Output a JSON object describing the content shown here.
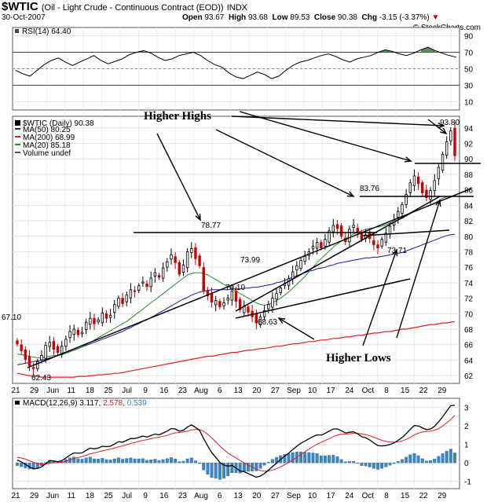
{
  "header": {
    "symbol": "$WTIC",
    "description": "(Oil - Light Crude - Continuous Contract (EOD))",
    "exchange": "INDX",
    "date": "30-Oct-2007",
    "open_label": "Open",
    "open": "93.67",
    "high_label": "High",
    "high": "93.68",
    "low_label": "Low",
    "low": "89.53",
    "close_label": "Close",
    "close": "90.38",
    "chg_label": "Chg",
    "chg": "-3.15 (-3.37%)",
    "credit": "© StockCharts.com"
  },
  "colors": {
    "candle_up": "#ffffff",
    "candle_down": "#cc0000",
    "ma50": "#1a1aa0",
    "ma200": "#e02020",
    "ma20": "#2a8a2a",
    "rsi": "#000000",
    "rsi_fill": "#3a7a3a",
    "macd": "#000000",
    "signal": "#e02020",
    "histogram": "#3b86c6"
  },
  "chart_data": [
    {
      "type": "line",
      "panel": "RSI",
      "title": "RSI(14) 64.40",
      "y_ticks": [
        "90",
        "70",
        "50",
        "30",
        "10"
      ],
      "ylim": [
        0,
        100
      ],
      "series": [
        {
          "name": "RSI(14)",
          "values": [
            48,
            44,
            41,
            48,
            55,
            60,
            63,
            58,
            54,
            58,
            62,
            66,
            60,
            56,
            59,
            62,
            67,
            70,
            72,
            69,
            64,
            60,
            62,
            66,
            68,
            70,
            66,
            60,
            55,
            52,
            45,
            40,
            38,
            42,
            46,
            43,
            38,
            41,
            48,
            54,
            58,
            60,
            63,
            66,
            68,
            65,
            61,
            58,
            62,
            64,
            66,
            70,
            73,
            71,
            68,
            66,
            69,
            73,
            76,
            72,
            69,
            66,
            64
          ]
        }
      ]
    },
    {
      "type": "candlestick",
      "panel": "price",
      "legend": [
        "$WTIC (Daily) 90.38",
        "MA(50) 80.25",
        "MA(200) 68.99",
        "MA(20) 85.18",
        "Volume undef"
      ],
      "y_ticks": [
        "94",
        "92",
        "90",
        "88",
        "86",
        "84",
        "82",
        "80",
        "78",
        "76",
        "74",
        "72",
        "70",
        "68",
        "66",
        "64",
        "62"
      ],
      "ylim": [
        61,
        95.5
      ],
      "x_labels": [
        "21",
        "29",
        "Jun",
        "11",
        "18",
        "25",
        "Jul",
        "9",
        "16",
        "23",
        "Aug",
        "6",
        "13",
        "20",
        "27",
        "Sep",
        "10",
        "17",
        "24",
        "Oct",
        "8",
        "15",
        "22",
        "29"
      ],
      "close": [
        66.1,
        65.2,
        64.1,
        63.3,
        62.9,
        63.8,
        64.6,
        65.9,
        66.3,
        65.4,
        65.0,
        65.8,
        66.7,
        67.7,
        68.0,
        67.3,
        67.6,
        68.9,
        69.4,
        68.7,
        69.2,
        70.1,
        69.4,
        69.8,
        71.2,
        72.0,
        71.3,
        72.4,
        73.1,
        72.9,
        73.6,
        74.1,
        73.5,
        74.6,
        75.3,
        74.7,
        75.9,
        76.7,
        77.6,
        76.6,
        75.1,
        76.3,
        78.0,
        78.4,
        77.1,
        76.2,
        73.0,
        72.3,
        71.5,
        71.7,
        70.9,
        71.4,
        72.0,
        72.9,
        71.6,
        70.5,
        71.0,
        70.2,
        69.6,
        68.8,
        69.6,
        70.4,
        71.2,
        72.0,
        72.6,
        73.3,
        73.9,
        74.5,
        75.4,
        76.2,
        76.9,
        77.4,
        78.0,
        78.7,
        79.2,
        78.5,
        79.6,
        80.7,
        81.4,
        81.0,
        80.0,
        79.3,
        80.9,
        81.4,
        80.6,
        79.6,
        80.2,
        79.7,
        78.9,
        78.5,
        79.6,
        80.4,
        81.3,
        82.1,
        83.2,
        84.1,
        85.4,
        86.9,
        87.8,
        86.8,
        85.6,
        85.0,
        85.9,
        87.2,
        88.9,
        90.6,
        92.2,
        93.6,
        90.4
      ],
      "ma50": [
        63.4,
        63.5,
        63.6,
        63.7,
        63.8,
        63.9,
        64.0,
        64.1,
        64.3,
        64.4,
        64.6,
        64.7,
        64.9,
        65.1,
        65.3,
        65.5,
        65.7,
        65.9,
        66.1,
        66.3,
        66.5,
        66.7,
        66.9,
        67.1,
        67.3,
        67.5,
        67.7,
        68.0,
        68.2,
        68.5,
        68.7,
        69.0,
        69.2,
        69.5,
        69.8,
        70.1,
        70.4,
        70.7,
        71.0,
        71.3,
        71.6,
        71.9,
        72.1,
        72.4,
        72.6,
        72.8,
        72.9,
        73.0,
        73.1,
        73.1,
        73.1,
        73.1,
        73.1,
        73.2,
        73.2,
        73.2,
        73.3,
        73.3,
        73.4,
        73.4,
        73.5,
        73.6,
        73.7,
        73.8,
        74.0,
        74.1,
        74.3,
        74.5,
        74.7,
        74.9,
        75.1,
        75.3,
        75.5,
        75.6,
        75.8,
        75.9,
        76.0,
        76.2,
        76.3,
        76.5,
        76.6,
        76.7,
        76.8,
        76.9,
        77.0,
        77.1,
        77.2,
        77.2,
        77.3,
        77.3,
        77.4,
        77.5,
        77.6,
        77.7,
        77.8,
        77.9,
        78.1,
        78.3,
        78.5,
        78.7,
        78.9,
        79.1,
        79.3,
        79.5,
        79.7,
        79.9,
        80.1,
        80.2,
        80.25
      ],
      "ma200": [
        62.3,
        62.2,
        62.1,
        62.0,
        61.9,
        61.9,
        61.8,
        61.8,
        61.8,
        61.8,
        61.8,
        61.8,
        61.8,
        61.8,
        61.8,
        61.9,
        61.9,
        61.9,
        62.0,
        62.0,
        62.1,
        62.1,
        62.2,
        62.2,
        62.3,
        62.3,
        62.4,
        62.5,
        62.6,
        62.7,
        62.8,
        62.9,
        63.0,
        63.1,
        63.2,
        63.3,
        63.4,
        63.5,
        63.6,
        63.7,
        63.8,
        63.9,
        64.0,
        64.1,
        64.2,
        64.3,
        64.4,
        64.5,
        64.5,
        64.6,
        64.7,
        64.8,
        64.9,
        65.0,
        65.0,
        65.1,
        65.2,
        65.3,
        65.3,
        65.4,
        65.5,
        65.5,
        65.6,
        65.7,
        65.8,
        65.8,
        65.9,
        66.0,
        66.1,
        66.1,
        66.2,
        66.3,
        66.4,
        66.4,
        66.5,
        66.6,
        66.6,
        66.7,
        66.8,
        66.8,
        66.9,
        67.0,
        67.0,
        67.1,
        67.2,
        67.2,
        67.3,
        67.4,
        67.5,
        67.5,
        67.6,
        67.7,
        67.7,
        67.8,
        67.9,
        68.0,
        68.0,
        68.1,
        68.2,
        68.3,
        68.4,
        68.5,
        68.6,
        68.6,
        68.7,
        68.8,
        68.8,
        68.9,
        68.99
      ],
      "ma20": [
        64.8,
        64.7,
        64.6,
        64.5,
        64.4,
        64.3,
        64.3,
        64.4,
        64.5,
        64.6,
        64.6,
        64.7,
        64.9,
        65.1,
        65.3,
        65.5,
        65.7,
        66.0,
        66.3,
        66.6,
        66.9,
        67.2,
        67.5,
        67.8,
        68.1,
        68.4,
        68.7,
        69.0,
        69.4,
        69.8,
        70.2,
        70.6,
        71.0,
        71.4,
        71.8,
        72.2,
        72.6,
        73.0,
        73.4,
        73.8,
        74.2,
        74.6,
        75.0,
        75.2,
        75.3,
        75.3,
        75.2,
        75.0,
        74.7,
        74.4,
        74.1,
        73.8,
        73.5,
        73.2,
        72.9,
        72.6,
        72.3,
        72.0,
        71.7,
        71.4,
        71.2,
        71.1,
        71.2,
        71.4,
        71.7,
        72.0,
        72.4,
        72.8,
        73.3,
        73.8,
        74.3,
        74.8,
        75.4,
        76.0,
        76.6,
        77.1,
        77.6,
        78.1,
        78.6,
        79.0,
        79.4,
        79.7,
        80.0,
        80.3,
        80.5,
        80.7,
        80.9,
        81.0,
        81.1,
        81.2,
        81.3,
        81.5,
        81.7,
        81.9,
        82.1,
        82.3,
        82.6,
        82.9,
        83.2,
        83.4,
        83.6,
        83.8,
        84.0,
        84.3,
        84.6,
        84.9,
        85.1,
        85.2,
        85.18
      ],
      "annotations": [
        {
          "text": "Higher Highs"
        },
        {
          "text": "Higher Lows"
        },
        {
          "text": "67.10"
        },
        {
          "text": "62.43"
        },
        {
          "text": "78.77"
        },
        {
          "text": "73.99"
        },
        {
          "text": "70.10"
        },
        {
          "text": "68.63"
        },
        {
          "text": "83.76"
        },
        {
          "text": "73.71"
        },
        {
          "text": "93.80"
        }
      ]
    },
    {
      "type": "line",
      "panel": "MACD",
      "title": "MACD(12,26,9)",
      "macd_value": "3.117",
      "signal_value": "2.578",
      "hist_value": "0.539",
      "y_ticks": [
        "3",
        "2",
        "1",
        "0",
        "-1"
      ],
      "ylim": [
        -1.4,
        3.5
      ],
      "macd": [
        0.15,
        0.05,
        -0.08,
        -0.22,
        -0.32,
        -0.3,
        -0.22,
        -0.05,
        0.12,
        0.1,
        0.06,
        0.12,
        0.26,
        0.42,
        0.54,
        0.52,
        0.54,
        0.68,
        0.8,
        0.76,
        0.8,
        0.9,
        0.88,
        0.9,
        1.02,
        1.15,
        1.12,
        1.22,
        1.32,
        1.32,
        1.38,
        1.45,
        1.4,
        1.48,
        1.56,
        1.52,
        1.62,
        1.72,
        1.86,
        1.84,
        1.72,
        1.76,
        1.94,
        2.06,
        1.92,
        1.76,
        1.32,
        0.92,
        0.55,
        0.3,
        0.02,
        -0.12,
        -0.18,
        -0.14,
        -0.28,
        -0.44,
        -0.48,
        -0.58,
        -0.68,
        -0.78,
        -0.72,
        -0.58,
        -0.4,
        -0.2,
        -0.02,
        0.18,
        0.36,
        0.52,
        0.72,
        0.9,
        1.06,
        1.18,
        1.3,
        1.42,
        1.52,
        1.5,
        1.6,
        1.72,
        1.84,
        1.84,
        1.74,
        1.62,
        1.66,
        1.68,
        1.58,
        1.42,
        1.36,
        1.24,
        1.08,
        0.94,
        0.92,
        0.94,
        1.0,
        1.08,
        1.22,
        1.38,
        1.58,
        1.82,
        2.02,
        2.0,
        1.9,
        1.8,
        1.84,
        1.98,
        2.22,
        2.5,
        2.8,
        3.1,
        3.12
      ],
      "signal": [
        0.3,
        0.26,
        0.2,
        0.11,
        0.03,
        -0.04,
        -0.07,
        -0.07,
        -0.03,
        0.0,
        0.01,
        0.03,
        0.08,
        0.15,
        0.23,
        0.29,
        0.34,
        0.41,
        0.49,
        0.54,
        0.59,
        0.65,
        0.7,
        0.74,
        0.8,
        0.87,
        0.92,
        0.98,
        1.05,
        1.1,
        1.16,
        1.22,
        1.26,
        1.31,
        1.36,
        1.39,
        1.44,
        1.49,
        1.57,
        1.62,
        1.65,
        1.67,
        1.72,
        1.79,
        1.81,
        1.8,
        1.71,
        1.55,
        1.35,
        1.14,
        0.92,
        0.71,
        0.53,
        0.4,
        0.26,
        0.12,
        0.0,
        -0.12,
        -0.23,
        -0.34,
        -0.42,
        -0.45,
        -0.44,
        -0.39,
        -0.32,
        -0.22,
        -0.1,
        0.02,
        0.16,
        0.31,
        0.46,
        0.6,
        0.74,
        0.88,
        1.01,
        1.11,
        1.21,
        1.31,
        1.42,
        1.5,
        1.55,
        1.56,
        1.58,
        1.6,
        1.6,
        1.57,
        1.53,
        1.47,
        1.39,
        1.3,
        1.22,
        1.16,
        1.13,
        1.12,
        1.14,
        1.19,
        1.27,
        1.38,
        1.51,
        1.61,
        1.67,
        1.7,
        1.72,
        1.77,
        1.86,
        2.0,
        2.16,
        2.35,
        2.58
      ]
    }
  ]
}
